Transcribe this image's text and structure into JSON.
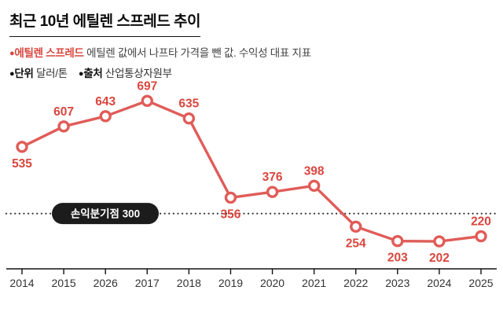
{
  "header": {
    "title": "최근 10년 에틸렌 스프레드 추이",
    "legend": {
      "bullet": "●",
      "series_name": "에틸렌 스프레드",
      "series_desc": " 에틸렌 값에서 나프타 가격을 뺀 값. 수익성 대표 지표",
      "unit_label": "단위",
      "unit_value": " 달러/톤",
      "source_label": "출처",
      "source_value": " 산업통상자원부"
    }
  },
  "chart_data": {
    "type": "line",
    "title": "최근 10년 에틸렌 스프레드 추이",
    "unit": "달러/톤",
    "source": "산업통상자원부",
    "categories": [
      "2014",
      "2015",
      "2026",
      "2017",
      "2018",
      "2019",
      "2020",
      "2021",
      "2022",
      "2023",
      "2024",
      "2025"
    ],
    "values": [
      535,
      607,
      643,
      697,
      635,
      356,
      376,
      398,
      254,
      203,
      202,
      220
    ],
    "label_positions": [
      "below",
      "above",
      "above",
      "above",
      "above",
      "below",
      "above",
      "above",
      "below",
      "below",
      "below",
      "above"
    ],
    "breakeven": {
      "label": "손익분기점 300",
      "value": 300
    },
    "line_color": "#e05c58",
    "label_color": "#d9463e",
    "marker_fill": "#ffffff",
    "axis_color": "#111111",
    "year_color": "#333333",
    "breakeven_line_color": "#333333",
    "badge_bg": "#1c1c1c",
    "badge_text_color": "#ffffff",
    "ylim": [
      180,
      720
    ],
    "grid": false,
    "legend_position": "none"
  }
}
